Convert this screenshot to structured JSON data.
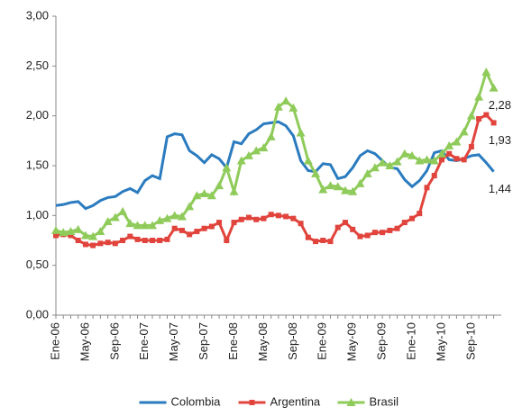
{
  "chart_data": {
    "type": "line",
    "categories": [
      "Ene-06",
      null,
      null,
      null,
      "May-06",
      null,
      null,
      null,
      "Sep-06",
      null,
      null,
      null,
      "Ene-07",
      null,
      null,
      null,
      "May-07",
      null,
      null,
      null,
      "Sep-07",
      null,
      null,
      null,
      "Ene-08",
      null,
      null,
      null,
      "May-08",
      null,
      null,
      null,
      "Sep-08",
      null,
      null,
      null,
      "Ene-09",
      null,
      null,
      null,
      "May-09",
      null,
      null,
      null,
      "Sep-09",
      null,
      null,
      null,
      "Ene-10",
      null,
      null,
      null,
      "May-10",
      null,
      null,
      null,
      "Sep-10",
      null,
      null,
      null
    ],
    "series": [
      {
        "name": "Colombia",
        "color": "#2a7bbf",
        "marker": "none",
        "values": [
          1.1,
          1.11,
          1.13,
          1.14,
          1.07,
          1.1,
          1.15,
          1.18,
          1.19,
          1.24,
          1.27,
          1.23,
          1.35,
          1.4,
          1.37,
          1.79,
          1.82,
          1.81,
          1.65,
          1.6,
          1.53,
          1.61,
          1.57,
          1.48,
          1.74,
          1.72,
          1.82,
          1.86,
          1.92,
          1.93,
          1.94,
          1.9,
          1.8,
          1.55,
          1.45,
          1.44,
          1.52,
          1.51,
          1.37,
          1.39,
          1.48,
          1.6,
          1.65,
          1.62,
          1.55,
          1.48,
          1.47,
          1.36,
          1.29,
          1.35,
          1.45,
          1.63,
          1.65,
          1.56,
          1.55,
          1.57,
          1.6,
          1.61,
          1.53,
          1.44
        ],
        "value_labels": [
          null,
          null,
          null,
          null,
          null,
          null,
          null,
          null,
          null,
          null,
          null,
          null,
          null,
          null,
          null,
          null,
          null,
          null,
          null,
          null,
          null,
          null,
          null,
          null,
          null,
          null,
          null,
          null,
          null,
          null,
          null,
          null,
          null,
          null,
          null,
          null,
          null,
          null,
          null,
          null,
          null,
          null,
          null,
          null,
          null,
          null,
          null,
          null,
          null,
          null,
          null,
          null,
          null,
          null,
          null,
          null,
          null,
          null,
          null,
          "1,44"
        ]
      },
      {
        "name": "Argentina",
        "color": "#e0443c",
        "marker": "square",
        "values": [
          0.8,
          0.81,
          0.8,
          0.75,
          0.71,
          0.7,
          0.72,
          0.73,
          0.72,
          0.75,
          0.79,
          0.76,
          0.75,
          0.75,
          0.75,
          0.76,
          0.87,
          0.85,
          0.81,
          0.84,
          0.87,
          0.89,
          0.93,
          0.75,
          0.93,
          0.96,
          0.98,
          0.96,
          0.97,
          1.01,
          1.0,
          0.99,
          0.97,
          0.92,
          0.78,
          0.74,
          0.75,
          0.74,
          0.88,
          0.93,
          0.86,
          0.79,
          0.8,
          0.83,
          0.83,
          0.85,
          0.87,
          0.93,
          0.97,
          1.02,
          1.28,
          1.4,
          1.56,
          1.62,
          1.57,
          1.56,
          1.69,
          1.97,
          2.01,
          1.93
        ],
        "value_labels": [
          null,
          null,
          null,
          null,
          null,
          null,
          null,
          null,
          null,
          null,
          null,
          null,
          null,
          null,
          null,
          null,
          null,
          null,
          null,
          null,
          null,
          null,
          null,
          null,
          null,
          null,
          null,
          null,
          null,
          null,
          null,
          null,
          null,
          null,
          null,
          null,
          null,
          null,
          null,
          null,
          null,
          null,
          null,
          null,
          null,
          null,
          null,
          null,
          null,
          null,
          null,
          null,
          null,
          null,
          null,
          null,
          null,
          null,
          null,
          "1,93"
        ]
      },
      {
        "name": "Brasil",
        "color": "#8fcb5a",
        "marker": "triangle",
        "values": [
          0.85,
          0.83,
          0.84,
          0.86,
          0.8,
          0.79,
          0.84,
          0.94,
          0.98,
          1.04,
          0.92,
          0.9,
          0.9,
          0.9,
          0.95,
          0.97,
          1.0,
          0.99,
          1.09,
          1.2,
          1.22,
          1.2,
          1.3,
          1.48,
          1.24,
          1.55,
          1.6,
          1.65,
          1.68,
          1.79,
          2.09,
          2.15,
          2.08,
          1.83,
          1.55,
          1.42,
          1.26,
          1.3,
          1.29,
          1.25,
          1.24,
          1.32,
          1.42,
          1.48,
          1.53,
          1.5,
          1.54,
          1.62,
          1.6,
          1.55,
          1.56,
          1.55,
          1.62,
          1.7,
          1.74,
          1.84,
          2.0,
          2.19,
          2.44,
          2.28
        ],
        "value_labels": [
          null,
          null,
          null,
          null,
          null,
          null,
          null,
          null,
          null,
          null,
          null,
          null,
          null,
          null,
          null,
          null,
          null,
          null,
          null,
          null,
          null,
          null,
          null,
          null,
          null,
          null,
          null,
          null,
          null,
          null,
          null,
          null,
          null,
          null,
          null,
          null,
          null,
          null,
          null,
          null,
          null,
          null,
          null,
          null,
          null,
          null,
          null,
          null,
          null,
          null,
          null,
          null,
          null,
          null,
          null,
          null,
          null,
          null,
          null,
          "2,28"
        ]
      }
    ],
    "ylim": [
      0,
      3
    ],
    "yticks": [
      {
        "value": 0,
        "label": "0,00"
      },
      {
        "value": 0.5,
        "label": "0,50"
      },
      {
        "value": 1,
        "label": "1,00"
      },
      {
        "value": 1.5,
        "label": "1,50"
      },
      {
        "value": 2,
        "label": "2,00"
      },
      {
        "value": 2.5,
        "label": "2,50"
      },
      {
        "value": 3,
        "label": "3,00"
      }
    ],
    "grid": false,
    "legend": "bottom"
  }
}
